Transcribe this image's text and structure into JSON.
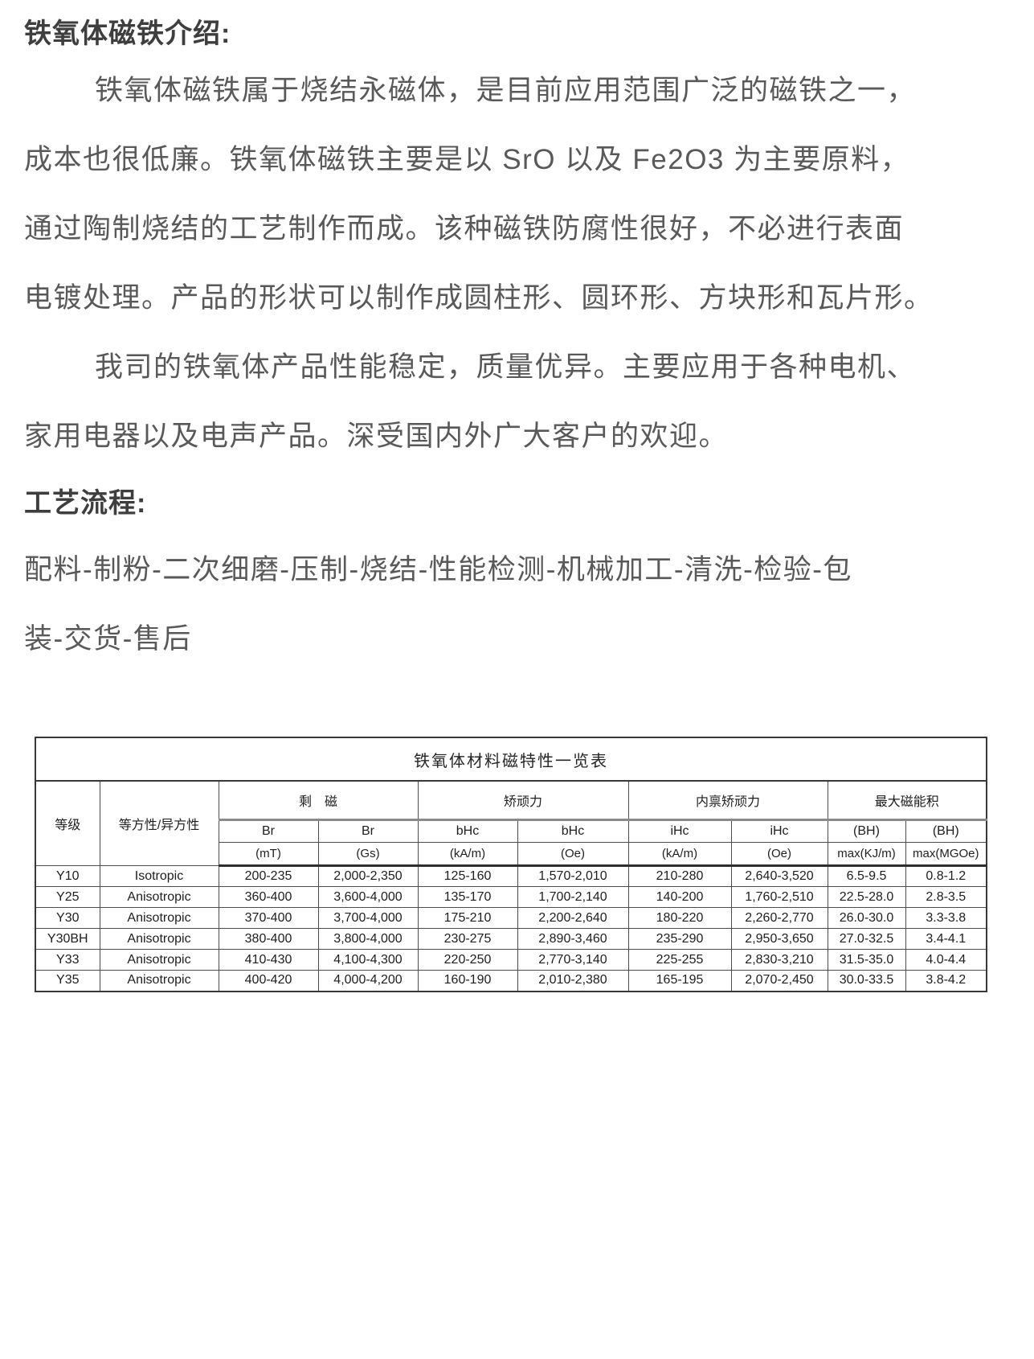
{
  "intro": {
    "heading": "铁氧体磁铁介绍:",
    "lines": [
      "铁氧体磁铁属于烧结永磁体，是目前应用范围广泛的磁铁之一，",
      "成本也很低廉。铁氧体磁铁主要是以 SrO 以及 Fe2O3 为主要原料，",
      "通过陶制烧结的工艺制作而成。该种磁铁防腐性很好，不必进行表面",
      "电镀处理。产品的形状可以制作成圆柱形、圆环形、方块形和瓦片形。",
      "我司的铁氧体产品性能稳定，质量优异。主要应用于各种电机、",
      "家用电器以及电声产品。深受国内外广大客户的欢迎。"
    ]
  },
  "process": {
    "heading": "工艺流程:",
    "lines": [
      "配料-制粉-二次细磨-压制-烧结-性能检测-机械加工-清洗-检验-包",
      "装-交货-售后"
    ]
  },
  "table": {
    "title": "铁氧体材料磁特性一览表",
    "header": {
      "grade": "等级",
      "isotropy": "等方性/异方性",
      "groups": [
        "剩　磁",
        "矫顽力",
        "内禀矫顽力",
        "最大磁能积"
      ],
      "sub": [
        "Br",
        "Br",
        "bHc",
        "bHc",
        "iHc",
        "iHc",
        "(BH)",
        "(BH)"
      ],
      "units": [
        "(mT)",
        "(Gs)",
        "(kA/m)",
        "(Oe)",
        "(kA/m)",
        "(Oe)",
        "max(KJ/m)",
        "max(MGOe)"
      ]
    },
    "rows": [
      [
        "Y10",
        "Isotropic",
        "200-235",
        "2,000-2,350",
        "125-160",
        "1,570-2,010",
        "210-280",
        "2,640-3,520",
        "6.5-9.5",
        "0.8-1.2"
      ],
      [
        "Y25",
        "Anisotropic",
        "360-400",
        "3,600-4,000",
        "135-170",
        "1,700-2,140",
        "140-200",
        "1,760-2,510",
        "22.5-28.0",
        "2.8-3.5"
      ],
      [
        "Y30",
        "Anisotropic",
        "370-400",
        "3,700-4,000",
        "175-210",
        "2,200-2,640",
        "180-220",
        "2,260-2,770",
        "26.0-30.0",
        "3.3-3.8"
      ],
      [
        "Y30BH",
        "Anisotropic",
        "380-400",
        "3,800-4,000",
        "230-275",
        "2,890-3,460",
        "235-290",
        "2,950-3,650",
        "27.0-32.5",
        "3.4-4.1"
      ],
      [
        "Y33",
        "Anisotropic",
        "410-430",
        "4,100-4,300",
        "220-250",
        "2,770-3,140",
        "225-255",
        "2,830-3,210",
        "31.5-35.0",
        "4.0-4.4"
      ],
      [
        "Y35",
        "Anisotropic",
        "400-420",
        "4,000-4,200",
        "160-190",
        "2,010-2,380",
        "165-195",
        "2,070-2,450",
        "30.0-33.5",
        "3.8-4.2"
      ]
    ]
  }
}
